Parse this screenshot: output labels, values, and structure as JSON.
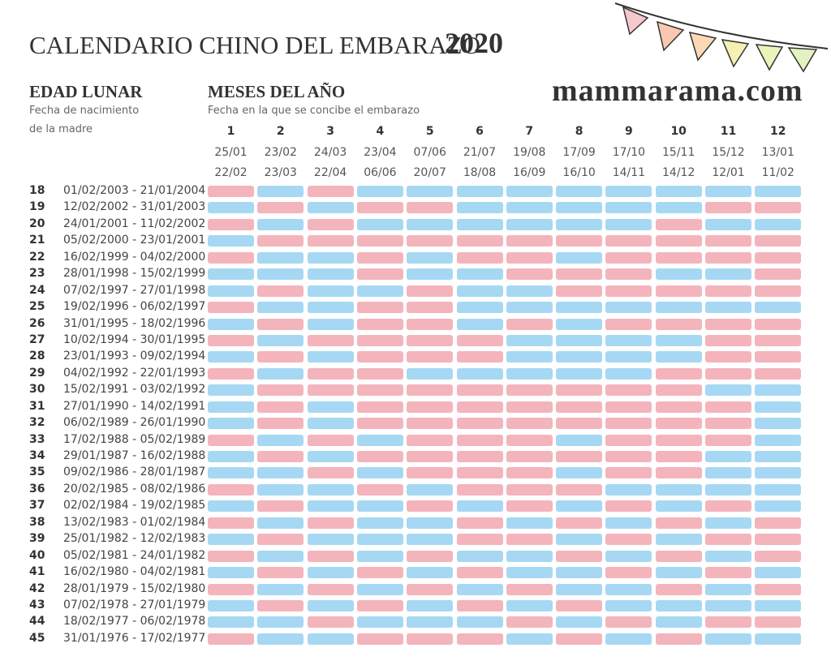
{
  "header": {
    "title": "CALENDARIO CHINO DEL EMBARAZO",
    "year": "2020",
    "site": "mammarama.com"
  },
  "left_header": {
    "title": "EDAD LUNAR",
    "subtitle_lines": [
      "Fecha de nacimiento",
      "de la madre"
    ]
  },
  "months_header": {
    "title": "MESES DEL AÑO",
    "subtitle": "Fecha en la que se concibe el embarazo"
  },
  "columns": [
    {
      "number": "1",
      "start": "25/01",
      "end": "22/02"
    },
    {
      "number": "2",
      "start": "23/02",
      "end": "23/03"
    },
    {
      "number": "3",
      "start": "24/03",
      "end": "22/04"
    },
    {
      "number": "4",
      "start": "23/04",
      "end": "06/06"
    },
    {
      "number": "5",
      "start": "07/06",
      "end": "20/07"
    },
    {
      "number": "6",
      "start": "21/07",
      "end": "18/08"
    },
    {
      "number": "7",
      "start": "19/08",
      "end": "16/09"
    },
    {
      "number": "8",
      "start": "17/09",
      "end": "16/10"
    },
    {
      "number": "9",
      "start": "17/10",
      "end": "14/11"
    },
    {
      "number": "10",
      "start": "15/11",
      "end": "14/12"
    },
    {
      "number": "11",
      "start": "15/12",
      "end": "12/01"
    },
    {
      "number": "12",
      "start": "13/01",
      "end": "11/02"
    }
  ],
  "rows": [
    {
      "age": "18",
      "dates": "01/02/2003 - 21/01/2004",
      "cells": [
        "#f4b4bc",
        "#a6d8f4",
        "#f4b4bc",
        "#a6d8f4",
        "#a6d8f4",
        "#a6d8f4",
        "#a6d8f4",
        "#a6d8f4",
        "#a6d8f4",
        "#a6d8f4",
        "#a6d8f4",
        "#a6d8f4"
      ]
    },
    {
      "age": "19",
      "dates": "12/02/2002 - 31/01/2003",
      "cells": [
        "#a6d8f4",
        "#f4b4bc",
        "#a6d8f4",
        "#f4b4bc",
        "#f4b4bc",
        "#a6d8f4",
        "#a6d8f4",
        "#a6d8f4",
        "#a6d8f4",
        "#a6d8f4",
        "#f4b4bc",
        "#f4b4bc"
      ]
    },
    {
      "age": "20",
      "dates": "24/01/2001 - 11/02/2002",
      "cells": [
        "#f4b4bc",
        "#a6d8f4",
        "#f4b4bc",
        "#a6d8f4",
        "#a6d8f4",
        "#a6d8f4",
        "#a6d8f4",
        "#a6d8f4",
        "#a6d8f4",
        "#f4b4bc",
        "#a6d8f4",
        "#a6d8f4"
      ]
    },
    {
      "age": "21",
      "dates": "05/02/2000 - 23/01/2001",
      "cells": [
        "#a6d8f4",
        "#f4b4bc",
        "#f4b4bc",
        "#f4b4bc",
        "#f4b4bc",
        "#f4b4bc",
        "#f4b4bc",
        "#f4b4bc",
        "#f4b4bc",
        "#f4b4bc",
        "#f4b4bc",
        "#f4b4bc"
      ]
    },
    {
      "age": "22",
      "dates": "16/02/1999 - 04/02/2000",
      "cells": [
        "#f4b4bc",
        "#a6d8f4",
        "#a6d8f4",
        "#f4b4bc",
        "#a6d8f4",
        "#f4b4bc",
        "#f4b4bc",
        "#a6d8f4",
        "#f4b4bc",
        "#f4b4bc",
        "#f4b4bc",
        "#f4b4bc"
      ]
    },
    {
      "age": "23",
      "dates": "28/01/1998 - 15/02/1999",
      "cells": [
        "#a6d8f4",
        "#a6d8f4",
        "#a6d8f4",
        "#f4b4bc",
        "#a6d8f4",
        "#a6d8f4",
        "#f4b4bc",
        "#f4b4bc",
        "#f4b4bc",
        "#a6d8f4",
        "#a6d8f4",
        "#f4b4bc"
      ]
    },
    {
      "age": "24",
      "dates": "07/02/1997 - 27/01/1998",
      "cells": [
        "#a6d8f4",
        "#f4b4bc",
        "#a6d8f4",
        "#a6d8f4",
        "#f4b4bc",
        "#a6d8f4",
        "#a6d8f4",
        "#f4b4bc",
        "#f4b4bc",
        "#f4b4bc",
        "#f4b4bc",
        "#f4b4bc"
      ]
    },
    {
      "age": "25",
      "dates": "19/02/1996 - 06/02/1997",
      "cells": [
        "#f4b4bc",
        "#a6d8f4",
        "#a6d8f4",
        "#f4b4bc",
        "#f4b4bc",
        "#a6d8f4",
        "#a6d8f4",
        "#a6d8f4",
        "#a6d8f4",
        "#a6d8f4",
        "#a6d8f4",
        "#a6d8f4"
      ]
    },
    {
      "age": "26",
      "dates": "31/01/1995 - 18/02/1996",
      "cells": [
        "#a6d8f4",
        "#f4b4bc",
        "#a6d8f4",
        "#f4b4bc",
        "#f4b4bc",
        "#a6d8f4",
        "#f4b4bc",
        "#a6d8f4",
        "#f4b4bc",
        "#f4b4bc",
        "#f4b4bc",
        "#f4b4bc"
      ]
    },
    {
      "age": "27",
      "dates": "10/02/1994 - 30/01/1995",
      "cells": [
        "#f4b4bc",
        "#a6d8f4",
        "#f4b4bc",
        "#f4b4bc",
        "#f4b4bc",
        "#f4b4bc",
        "#a6d8f4",
        "#a6d8f4",
        "#a6d8f4",
        "#a6d8f4",
        "#f4b4bc",
        "#f4b4bc"
      ]
    },
    {
      "age": "28",
      "dates": "23/01/1993 - 09/02/1994",
      "cells": [
        "#a6d8f4",
        "#f4b4bc",
        "#a6d8f4",
        "#f4b4bc",
        "#f4b4bc",
        "#f4b4bc",
        "#a6d8f4",
        "#a6d8f4",
        "#a6d8f4",
        "#a6d8f4",
        "#f4b4bc",
        "#f4b4bc"
      ]
    },
    {
      "age": "29",
      "dates": "04/02/1992 - 22/01/1993",
      "cells": [
        "#f4b4bc",
        "#a6d8f4",
        "#f4b4bc",
        "#f4b4bc",
        "#a6d8f4",
        "#a6d8f4",
        "#a6d8f4",
        "#a6d8f4",
        "#a6d8f4",
        "#f4b4bc",
        "#f4b4bc",
        "#f4b4bc"
      ]
    },
    {
      "age": "30",
      "dates": "15/02/1991 - 03/02/1992",
      "cells": [
        "#a6d8f4",
        "#f4b4bc",
        "#f4b4bc",
        "#f4b4bc",
        "#f4b4bc",
        "#f4b4bc",
        "#f4b4bc",
        "#f4b4bc",
        "#f4b4bc",
        "#f4b4bc",
        "#a6d8f4",
        "#a6d8f4"
      ]
    },
    {
      "age": "31",
      "dates": "27/01/1990 - 14/02/1991",
      "cells": [
        "#a6d8f4",
        "#f4b4bc",
        "#a6d8f4",
        "#f4b4bc",
        "#f4b4bc",
        "#f4b4bc",
        "#f4b4bc",
        "#f4b4bc",
        "#f4b4bc",
        "#f4b4bc",
        "#f4b4bc",
        "#a6d8f4"
      ]
    },
    {
      "age": "32",
      "dates": "06/02/1989 - 26/01/1990",
      "cells": [
        "#a6d8f4",
        "#f4b4bc",
        "#a6d8f4",
        "#f4b4bc",
        "#f4b4bc",
        "#f4b4bc",
        "#f4b4bc",
        "#f4b4bc",
        "#f4b4bc",
        "#f4b4bc",
        "#f4b4bc",
        "#a6d8f4"
      ]
    },
    {
      "age": "33",
      "dates": "17/02/1988 - 05/02/1989",
      "cells": [
        "#f4b4bc",
        "#a6d8f4",
        "#f4b4bc",
        "#a6d8f4",
        "#f4b4bc",
        "#f4b4bc",
        "#f4b4bc",
        "#a6d8f4",
        "#f4b4bc",
        "#f4b4bc",
        "#f4b4bc",
        "#a6d8f4"
      ]
    },
    {
      "age": "34",
      "dates": "29/01/1987 - 16/02/1988",
      "cells": [
        "#a6d8f4",
        "#f4b4bc",
        "#a6d8f4",
        "#f4b4bc",
        "#f4b4bc",
        "#f4b4bc",
        "#f4b4bc",
        "#f4b4bc",
        "#f4b4bc",
        "#f4b4bc",
        "#a6d8f4",
        "#a6d8f4"
      ]
    },
    {
      "age": "35",
      "dates": "09/02/1986 - 28/01/1987",
      "cells": [
        "#a6d8f4",
        "#a6d8f4",
        "#f4b4bc",
        "#a6d8f4",
        "#f4b4bc",
        "#f4b4bc",
        "#f4b4bc",
        "#a6d8f4",
        "#f4b4bc",
        "#f4b4bc",
        "#a6d8f4",
        "#a6d8f4"
      ]
    },
    {
      "age": "36",
      "dates": "20/02/1985 - 08/02/1986",
      "cells": [
        "#f4b4bc",
        "#a6d8f4",
        "#a6d8f4",
        "#f4b4bc",
        "#a6d8f4",
        "#f4b4bc",
        "#f4b4bc",
        "#f4b4bc",
        "#a6d8f4",
        "#a6d8f4",
        "#a6d8f4",
        "#a6d8f4"
      ]
    },
    {
      "age": "37",
      "dates": "02/02/1984 - 19/02/1985",
      "cells": [
        "#a6d8f4",
        "#f4b4bc",
        "#a6d8f4",
        "#a6d8f4",
        "#f4b4bc",
        "#a6d8f4",
        "#f4b4bc",
        "#a6d8f4",
        "#f4b4bc",
        "#a6d8f4",
        "#f4b4bc",
        "#a6d8f4"
      ]
    },
    {
      "age": "38",
      "dates": "13/02/1983 - 01/02/1984",
      "cells": [
        "#f4b4bc",
        "#a6d8f4",
        "#f4b4bc",
        "#a6d8f4",
        "#a6d8f4",
        "#f4b4bc",
        "#a6d8f4",
        "#f4b4bc",
        "#a6d8f4",
        "#f4b4bc",
        "#a6d8f4",
        "#f4b4bc"
      ]
    },
    {
      "age": "39",
      "dates": "25/01/1982 - 12/02/1983",
      "cells": [
        "#a6d8f4",
        "#f4b4bc",
        "#a6d8f4",
        "#a6d8f4",
        "#a6d8f4",
        "#f4b4bc",
        "#f4b4bc",
        "#a6d8f4",
        "#f4b4bc",
        "#a6d8f4",
        "#f4b4bc",
        "#f4b4bc"
      ]
    },
    {
      "age": "40",
      "dates": "05/02/1981 - 24/01/1982",
      "cells": [
        "#f4b4bc",
        "#a6d8f4",
        "#f4b4bc",
        "#a6d8f4",
        "#f4b4bc",
        "#a6d8f4",
        "#a6d8f4",
        "#f4b4bc",
        "#a6d8f4",
        "#f4b4bc",
        "#a6d8f4",
        "#f4b4bc"
      ]
    },
    {
      "age": "41",
      "dates": "16/02/1980 - 04/02/1981",
      "cells": [
        "#a6d8f4",
        "#f4b4bc",
        "#a6d8f4",
        "#f4b4bc",
        "#a6d8f4",
        "#f4b4bc",
        "#a6d8f4",
        "#a6d8f4",
        "#f4b4bc",
        "#a6d8f4",
        "#f4b4bc",
        "#a6d8f4"
      ]
    },
    {
      "age": "42",
      "dates": "28/01/1979 - 15/02/1980",
      "cells": [
        "#f4b4bc",
        "#a6d8f4",
        "#f4b4bc",
        "#a6d8f4",
        "#f4b4bc",
        "#a6d8f4",
        "#f4b4bc",
        "#a6d8f4",
        "#a6d8f4",
        "#f4b4bc",
        "#a6d8f4",
        "#f4b4bc"
      ]
    },
    {
      "age": "43",
      "dates": "07/02/1978 - 27/01/1979",
      "cells": [
        "#a6d8f4",
        "#f4b4bc",
        "#a6d8f4",
        "#f4b4bc",
        "#a6d8f4",
        "#f4b4bc",
        "#a6d8f4",
        "#f4b4bc",
        "#a6d8f4",
        "#a6d8f4",
        "#a6d8f4",
        "#a6d8f4"
      ]
    },
    {
      "age": "44",
      "dates": "18/02/1977 - 06/02/1978",
      "cells": [
        "#a6d8f4",
        "#a6d8f4",
        "#f4b4bc",
        "#a6d8f4",
        "#a6d8f4",
        "#a6d8f4",
        "#f4b4bc",
        "#a6d8f4",
        "#f4b4bc",
        "#a6d8f4",
        "#f4b4bc",
        "#f4b4bc"
      ]
    },
    {
      "age": "45",
      "dates": "31/01/1976 - 17/02/1977",
      "cells": [
        "#f4b4bc",
        "#a6d8f4",
        "#a6d8f4",
        "#f4b4bc",
        "#f4b4bc",
        "#f4b4bc",
        "#a6d8f4",
        "#f4b4bc",
        "#a6d8f4",
        "#f4b4bc",
        "#a6d8f4",
        "#a6d8f4"
      ]
    }
  ]
}
